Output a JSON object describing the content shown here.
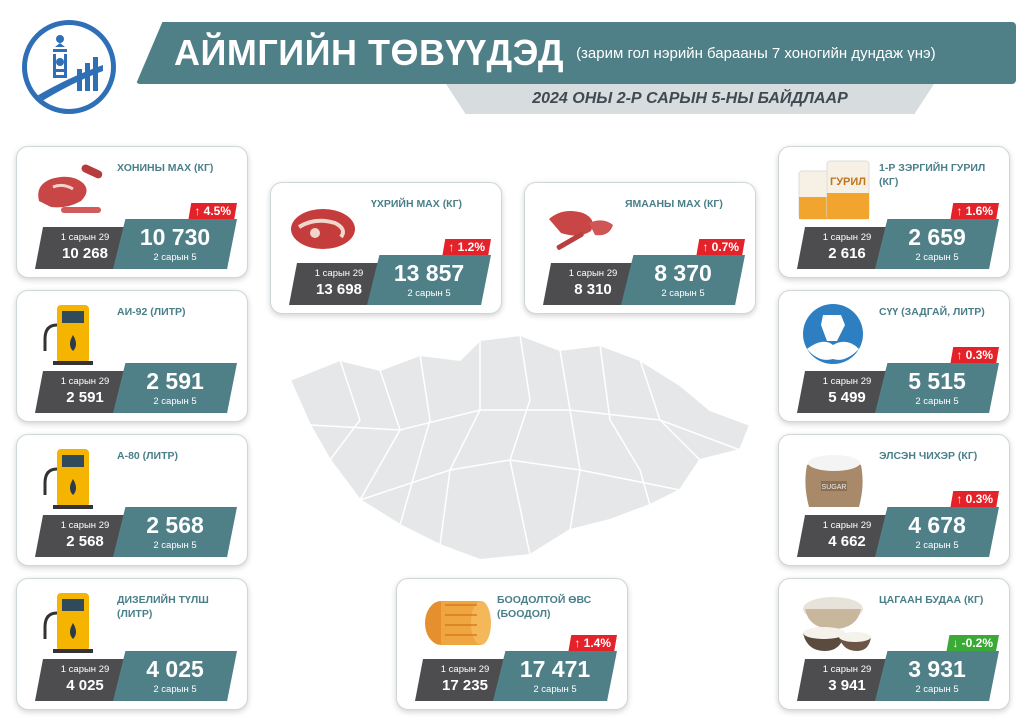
{
  "header": {
    "title": "АЙМГИЙН ТӨВҮҮДЭД",
    "subtitle": "(зарим гол нэрийн барааны 7 хоногийн дундаж үнэ)",
    "date_line": "2024 ОНЫ 2-Р САРЫН 5-НЫ БАЙДЛААР"
  },
  "colors": {
    "accent": "#4f7f87",
    "dark": "#4d4d4f",
    "up": "#e4222a",
    "down": "#3aa935",
    "logo": "#2f6fb6"
  },
  "products": {
    "mutton": {
      "name": "ХОНИНЫ МАХ (КГ)",
      "change": "↑ 4.5%",
      "prev_label": "1 сарын 29",
      "prev": "10 268",
      "cur": "10 730",
      "cur_label": "2 сарын 5",
      "icon": "meat-icon"
    },
    "beef": {
      "name": "ҮХРИЙН МАХ (КГ)",
      "change": "↑ 1.2%",
      "prev_label": "1 сарын 29",
      "prev": "13 698",
      "cur": "13 857",
      "cur_label": "2 сарын 5",
      "icon": "meat-icon"
    },
    "goat": {
      "name": "ЯМААНЫ МАХ (КГ)",
      "change": "↑ 0.7%",
      "prev_label": "1 сарын 29",
      "prev": "8 310",
      "cur": "8 370",
      "cur_label": "2 сарын 5",
      "icon": "meat-icon"
    },
    "flour": {
      "name": "1-Р ЗЭРГИЙН ГУРИЛ (КГ)",
      "change": "↑ 1.6%",
      "prev_label": "1 сарын 29",
      "prev": "2 616",
      "cur": "2 659",
      "cur_label": "2 сарын 5",
      "icon": "flour-bag-icon",
      "bag_text": "ГУРИЛ"
    },
    "ai92": {
      "name": "АИ-92 (ЛИТР)",
      "change": "",
      "prev_label": "1 сарын 29",
      "prev": "2 591",
      "cur": "2 591",
      "cur_label": "2 сарын 5",
      "icon": "fuel-pump-icon"
    },
    "milk": {
      "name": "СҮҮ (ЗАДГАЙ, ЛИТР)",
      "change": "↑ 0.3%",
      "prev_label": "1 сарын 29",
      "prev": "5 499",
      "cur": "5 515",
      "cur_label": "2 сарын 5",
      "icon": "milk-icon"
    },
    "a80": {
      "name": "А-80 (ЛИТР)",
      "change": "",
      "prev_label": "1 сарын 29",
      "prev": "2 568",
      "cur": "2 568",
      "cur_label": "2 сарын 5",
      "icon": "fuel-pump-icon"
    },
    "sugar": {
      "name": "ЭЛСЭН ЧИХЭР (КГ)",
      "change": "↑ 0.3%",
      "prev_label": "1 сарын 29",
      "prev": "4 662",
      "cur": "4 678",
      "cur_label": "2 сарын 5",
      "icon": "sugar-sack-icon",
      "sack_text": "SUGAR"
    },
    "diesel": {
      "name": "ДИЗЕЛИЙН ТҮЛШ (ЛИТР)",
      "change": "",
      "prev_label": "1 сарын 29",
      "prev": "4 025",
      "cur": "4 025",
      "cur_label": "2 сарын 5",
      "icon": "fuel-pump-icon"
    },
    "hay": {
      "name": "БООДОЛТОЙ ӨВС (БООДОЛ)",
      "change": "↑ 1.4%",
      "prev_label": "1 сарын 29",
      "prev": "17 235",
      "cur": "17 471",
      "cur_label": "2 сарын 5",
      "icon": "hay-bale-icon"
    },
    "rice": {
      "name": "ЦАГААН БУДАА (КГ)",
      "change": "↓ -0.2%",
      "prev_label": "1 сарын 29",
      "prev": "3 941",
      "cur": "3 931",
      "cur_label": "2 сарын 5",
      "icon": "rice-bowl-icon"
    }
  }
}
